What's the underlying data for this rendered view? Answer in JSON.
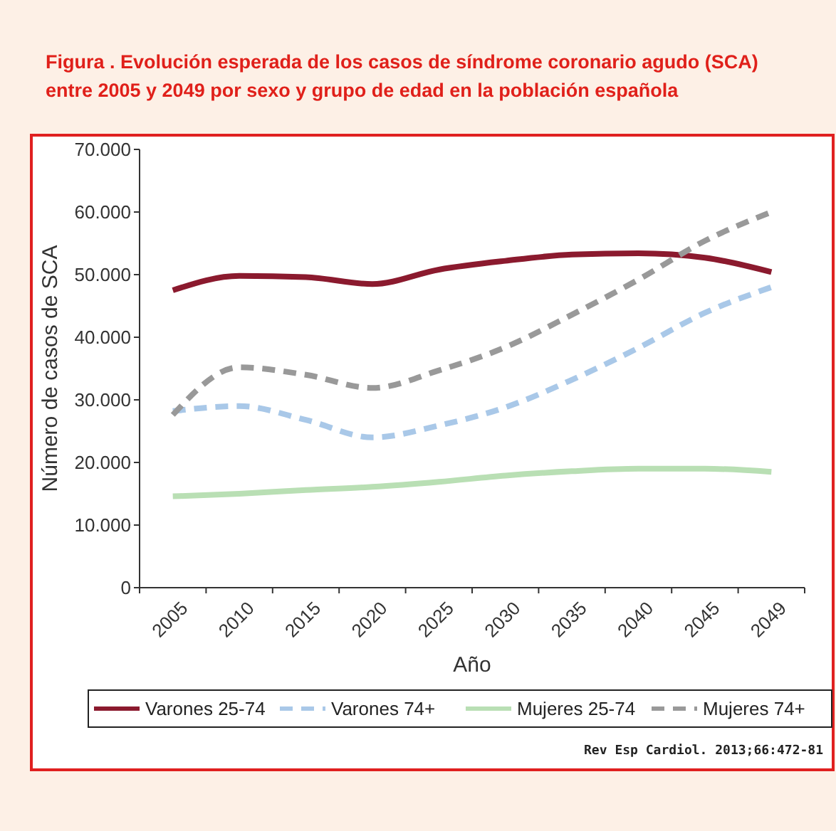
{
  "chart_data": {
    "type": "line",
    "title": "Figura  . Evolución esperada de los casos de síndrome coronario agudo (SCA) entre 2005 y 2049 por sexo y grupo de edad en la población española",
    "xlabel": "Año",
    "ylabel": "Número de casos de SCA",
    "categories": [
      "2005",
      "2010",
      "2015",
      "2020",
      "2025",
      "2030",
      "2035",
      "2040",
      "2045",
      "2049"
    ],
    "series": [
      {
        "name": "Varones 25-74",
        "color": "#8b1a2e",
        "line_style": "solid",
        "values": [
          47500,
          49800,
          49600,
          48500,
          50800,
          52200,
          53200,
          53400,
          52700,
          50400
        ]
      },
      {
        "name": "Varones 74+",
        "color": "#a9c8e8",
        "line_style": "dashed",
        "values": [
          28200,
          29000,
          26800,
          24000,
          25900,
          28800,
          33200,
          38300,
          43900,
          48000
        ]
      },
      {
        "name": "Mujeres 25-74",
        "color": "#b9dfb4",
        "line_style": "solid",
        "values": [
          14600,
          15000,
          15600,
          16100,
          16900,
          17900,
          18600,
          19000,
          19000,
          18500
        ]
      },
      {
        "name": "Mujeres 74+",
        "color": "#999999",
        "line_style": "dashed",
        "values": [
          27600,
          35200,
          34000,
          31900,
          34700,
          38400,
          43600,
          49200,
          55400,
          60000
        ]
      }
    ],
    "ylim": [
      0,
      70000
    ],
    "yticks": [
      {
        "value": 0,
        "label": "0"
      },
      {
        "value": 10000,
        "label": "10.000"
      },
      {
        "value": 20000,
        "label": "20.000"
      },
      {
        "value": 30000,
        "label": "30.000"
      },
      {
        "value": 40000,
        "label": "40.000"
      },
      {
        "value": 50000,
        "label": "50.000"
      },
      {
        "value": 60000,
        "label": "60.000"
      },
      {
        "value": 70000,
        "label": "70.000"
      }
    ],
    "grid": false,
    "legend": "bottom",
    "marker": "none",
    "annotations": [
      "Rev Esp Cardiol. 2013;66:472-81"
    ]
  }
}
